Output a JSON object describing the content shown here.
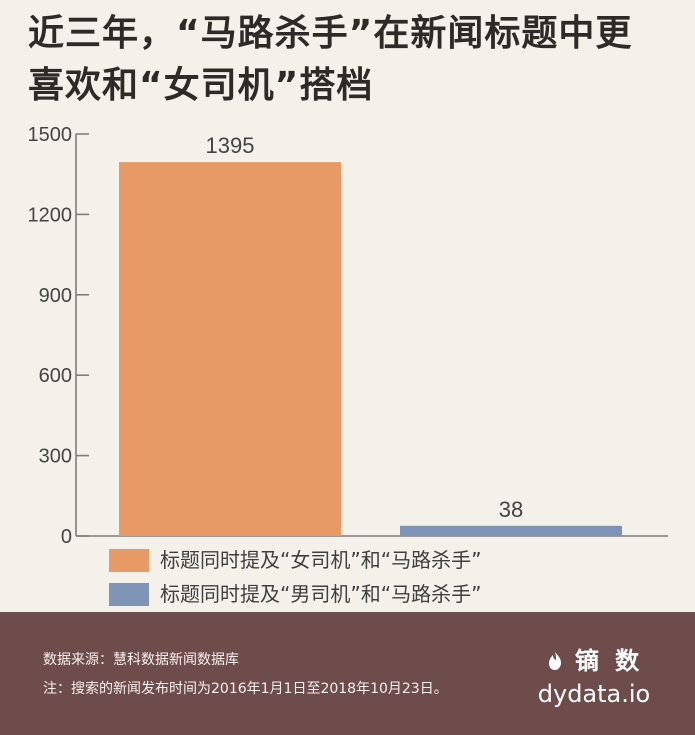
{
  "title": "近三年，“马路杀手”在新闻标题中更喜欢和“女司机”搭档",
  "chart_data": {
    "type": "bar",
    "title": "近三年，“马路杀手”在新闻标题中更喜欢和“女司机”搭档",
    "categories": [
      "标题同时提及“女司机”和“马路杀手”",
      "标题同时提及“男司机”和“马路杀手”"
    ],
    "values": [
      1395,
      38
    ],
    "series": [
      {
        "name": "标题同时提及“女司机”和“马路杀手”",
        "values": [
          1395,
          null
        ],
        "color": "#e79a66"
      },
      {
        "name": "标题同时提及“男司机”和“马路杀手”",
        "values": [
          null,
          38
        ],
        "color": "#7f93b7"
      }
    ],
    "yticks": [
      0,
      300,
      600,
      900,
      1200,
      1500
    ],
    "ylim": [
      0,
      1500
    ],
    "data_labels": [
      "1395",
      "38"
    ],
    "legend_position": "bottom-left"
  },
  "legend": [
    {
      "label": "标题同时提及“女司机”和“马路杀手”",
      "color": "#e79a66"
    },
    {
      "label": "标题同时提及“男司机”和“马路杀手”",
      "color": "#7f93b7"
    }
  ],
  "footer": {
    "source": "数据来源：慧科数据新闻数据库",
    "note": "注：搜索的新闻发布时间为2016年1月1日至2018年10月23日。",
    "brand_name": "镝 数",
    "brand_url": "dydata.io"
  }
}
